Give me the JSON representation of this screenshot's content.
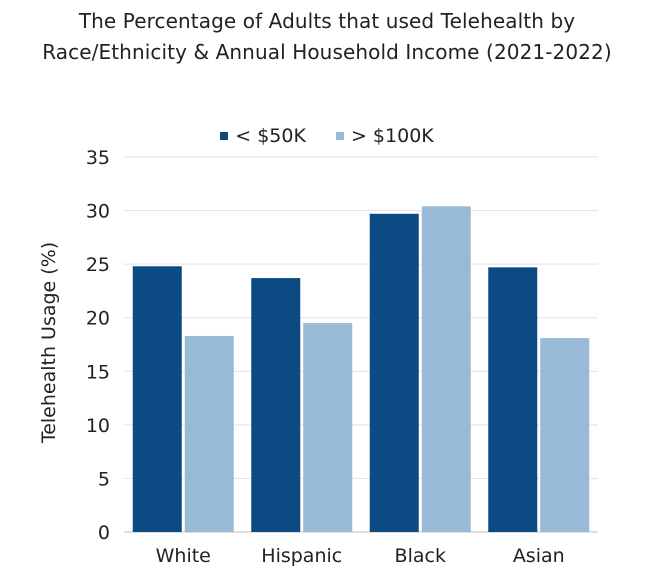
{
  "chart_data": {
    "type": "bar",
    "title_lines": [
      "The Percentage of Adults that used Telehealth by",
      "Race/Ethnicity & Annual Household Income (2021-2022)"
    ],
    "categories": [
      "White",
      "Hispanic",
      "Black",
      "Asian"
    ],
    "series": [
      {
        "name": "< $50K",
        "color": "#0b4a82",
        "values": [
          24.8,
          23.7,
          29.7,
          24.7
        ]
      },
      {
        "name": "> $100K",
        "color": "#98bad7",
        "values": [
          18.3,
          19.5,
          30.4,
          18.1
        ]
      }
    ],
    "xlabel": "",
    "ylabel": "Telehealth Usage (%)",
    "ylim": [
      0,
      35
    ],
    "yticks": [
      0,
      5,
      10,
      15,
      20,
      25,
      30,
      35
    ],
    "grid": true,
    "legend_position": "top"
  }
}
